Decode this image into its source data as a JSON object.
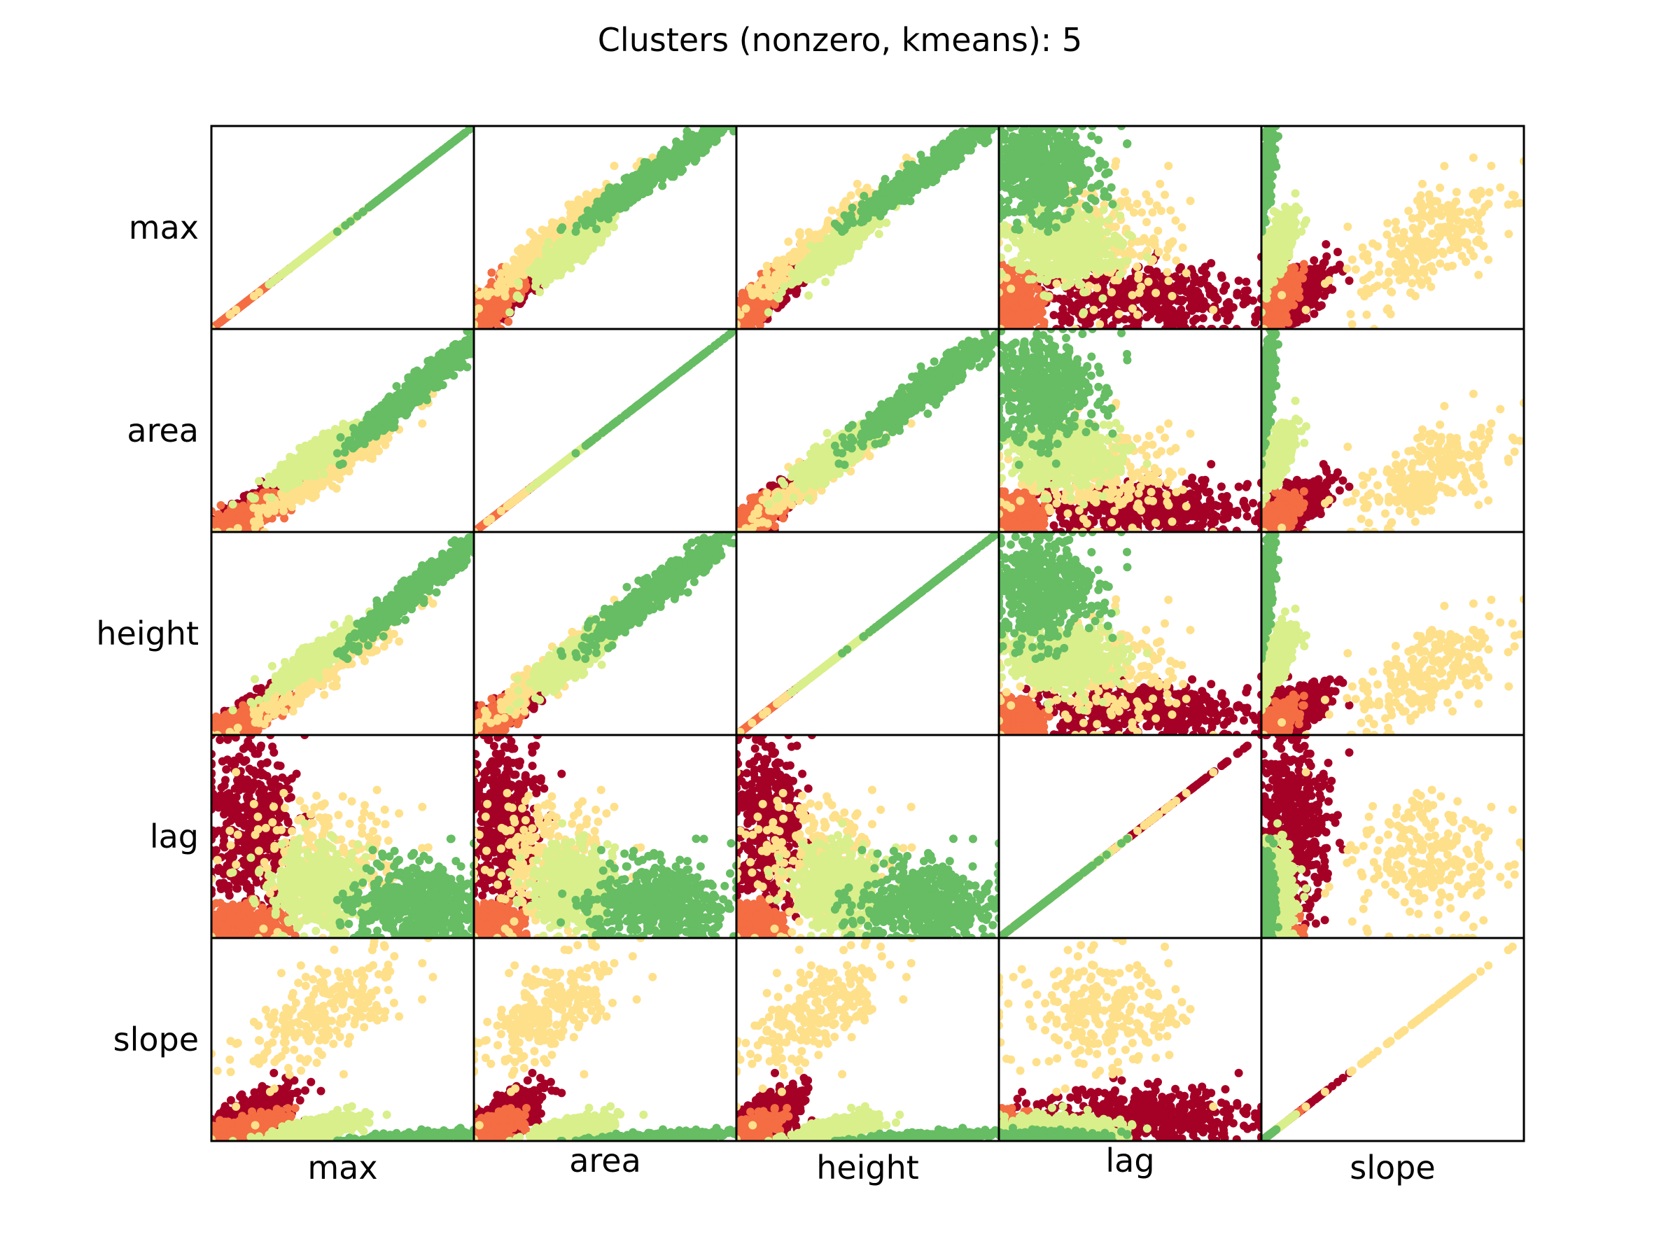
{
  "chart_data": {
    "type": "scatter",
    "title": "Clusters (nonzero, kmeans): 5",
    "variables": [
      "max",
      "area",
      "height",
      "lag",
      "slope"
    ],
    "clusters": [
      {
        "id": 0,
        "color": "#a50026"
      },
      {
        "id": 1,
        "color": "#f46d43"
      },
      {
        "id": 2,
        "color": "#fee08b"
      },
      {
        "id": 3,
        "color": "#d9ef8b"
      },
      {
        "id": 4,
        "color": "#66bd63"
      }
    ],
    "axis_ranges_normalized": [
      0,
      1
    ],
    "ticks_visible": false,
    "grid": false,
    "legend": "none",
    "cluster_centroids_normalized": [
      {
        "cluster": 0,
        "max": 0.15,
        "area": 0.12,
        "height": 0.12,
        "lag": 0.55,
        "slope": 0.12
      },
      {
        "cluster": 1,
        "max": 0.12,
        "area": 0.07,
        "height": 0.07,
        "lag": 0.07,
        "slope": 0.06
      },
      {
        "cluster": 2,
        "max": 0.42,
        "area": 0.27,
        "height": 0.3,
        "lag": 0.4,
        "slope": 0.62
      },
      {
        "cluster": 3,
        "max": 0.4,
        "area": 0.38,
        "height": 0.38,
        "lag": 0.26,
        "slope": 0.06
      },
      {
        "cluster": 4,
        "max": 0.78,
        "area": 0.7,
        "height": 0.72,
        "lag": 0.17,
        "slope": 0.02
      }
    ]
  }
}
